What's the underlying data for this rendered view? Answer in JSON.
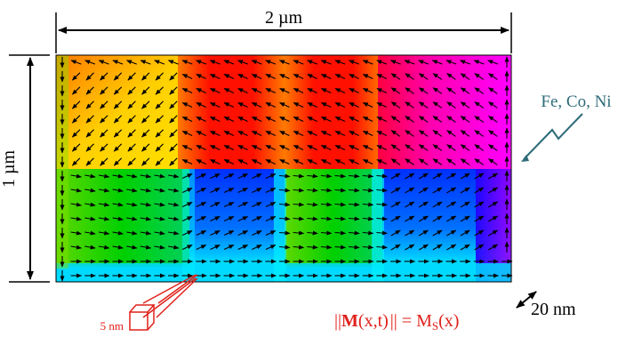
{
  "width_label": "2 µm",
  "height_label": "1 µm",
  "materials_label": "Fe, Co, Ni",
  "cell_size_label": "5 nm",
  "thickness_label": "20 nm",
  "equation": {
    "lhs_open": "||",
    "bold_symbol": "M",
    "args": "(x,t)",
    "lhs_close": "|| = M",
    "subscript": "S",
    "rhs_args": "(x)"
  },
  "colors": {
    "equation": "#e0201a",
    "cell": "#e0201a",
    "label": "#2d6b78",
    "arrow": "#000000",
    "domain_top_left": "#ffa800",
    "domain_top_mid": "#ff1a00",
    "domain_top_right": "#ff00ff",
    "domain_left": "#00d000",
    "domain_bottom": "#0033ff",
    "domain_bottom_edge": "#00f0ff"
  }
}
